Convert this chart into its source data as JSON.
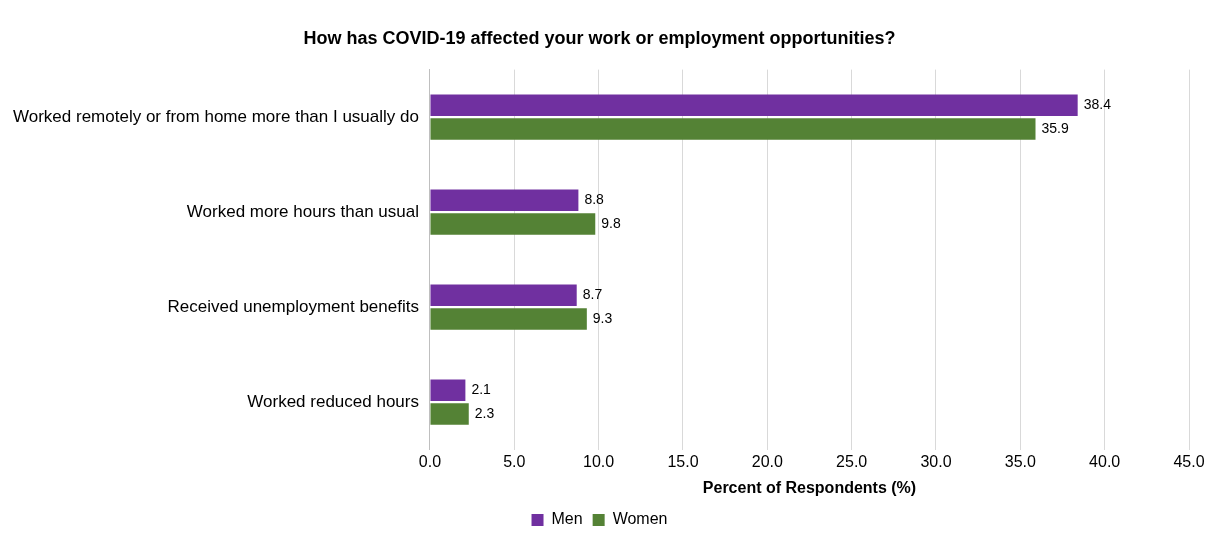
{
  "chart_data": {
    "type": "bar",
    "orientation": "horizontal",
    "title": "How has COVID-19 affected your work or employment opportunities?",
    "xlabel": "Percent of Respondents (%)",
    "categories": [
      "Worked remotely or from home more than I usually do",
      "Worked more hours than usual",
      "Received unemployment benefits",
      "Worked reduced hours"
    ],
    "series": [
      {
        "name": "Men",
        "color": "#7030a0",
        "values": [
          38.4,
          8.8,
          8.7,
          2.1
        ]
      },
      {
        "name": "Women",
        "color": "#548235",
        "values": [
          35.9,
          9.8,
          9.3,
          2.3
        ]
      }
    ],
    "xlim": [
      0,
      45
    ],
    "xticks": [
      {
        "value": 0,
        "label": "0.0"
      },
      {
        "value": 5,
        "label": "5.0"
      },
      {
        "value": 10,
        "label": "10.0"
      },
      {
        "value": 15,
        "label": "15.0"
      },
      {
        "value": 20,
        "label": "20.0"
      },
      {
        "value": 25,
        "label": "25.0"
      },
      {
        "value": 30,
        "label": "30.0"
      },
      {
        "value": 35,
        "label": "35.0"
      },
      {
        "value": 40,
        "label": "40.0"
      },
      {
        "value": 45,
        "label": "45.0"
      }
    ],
    "grid": "x",
    "legend": "bottom",
    "data_labels": true
  }
}
